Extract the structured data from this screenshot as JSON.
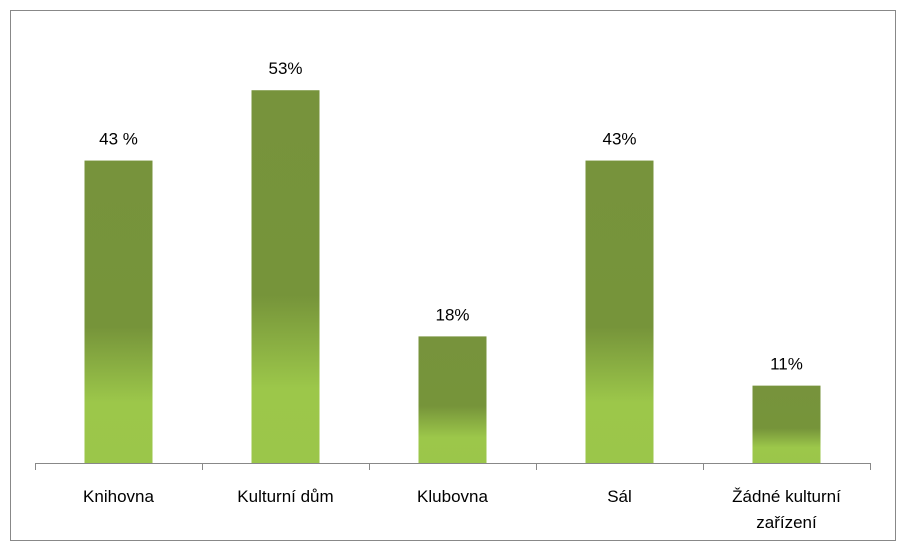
{
  "chart_data": {
    "type": "bar",
    "categories": [
      "Knihovna",
      "Kulturní dům",
      "Klubovna",
      "Sál",
      "Žádné kulturní zařízení"
    ],
    "values": [
      43,
      53,
      18,
      43,
      11
    ],
    "value_labels": [
      "43 %",
      "53%",
      "18%",
      "43%",
      "11%"
    ],
    "color": "#77933c",
    "ylim": [
      0,
      60
    ]
  }
}
